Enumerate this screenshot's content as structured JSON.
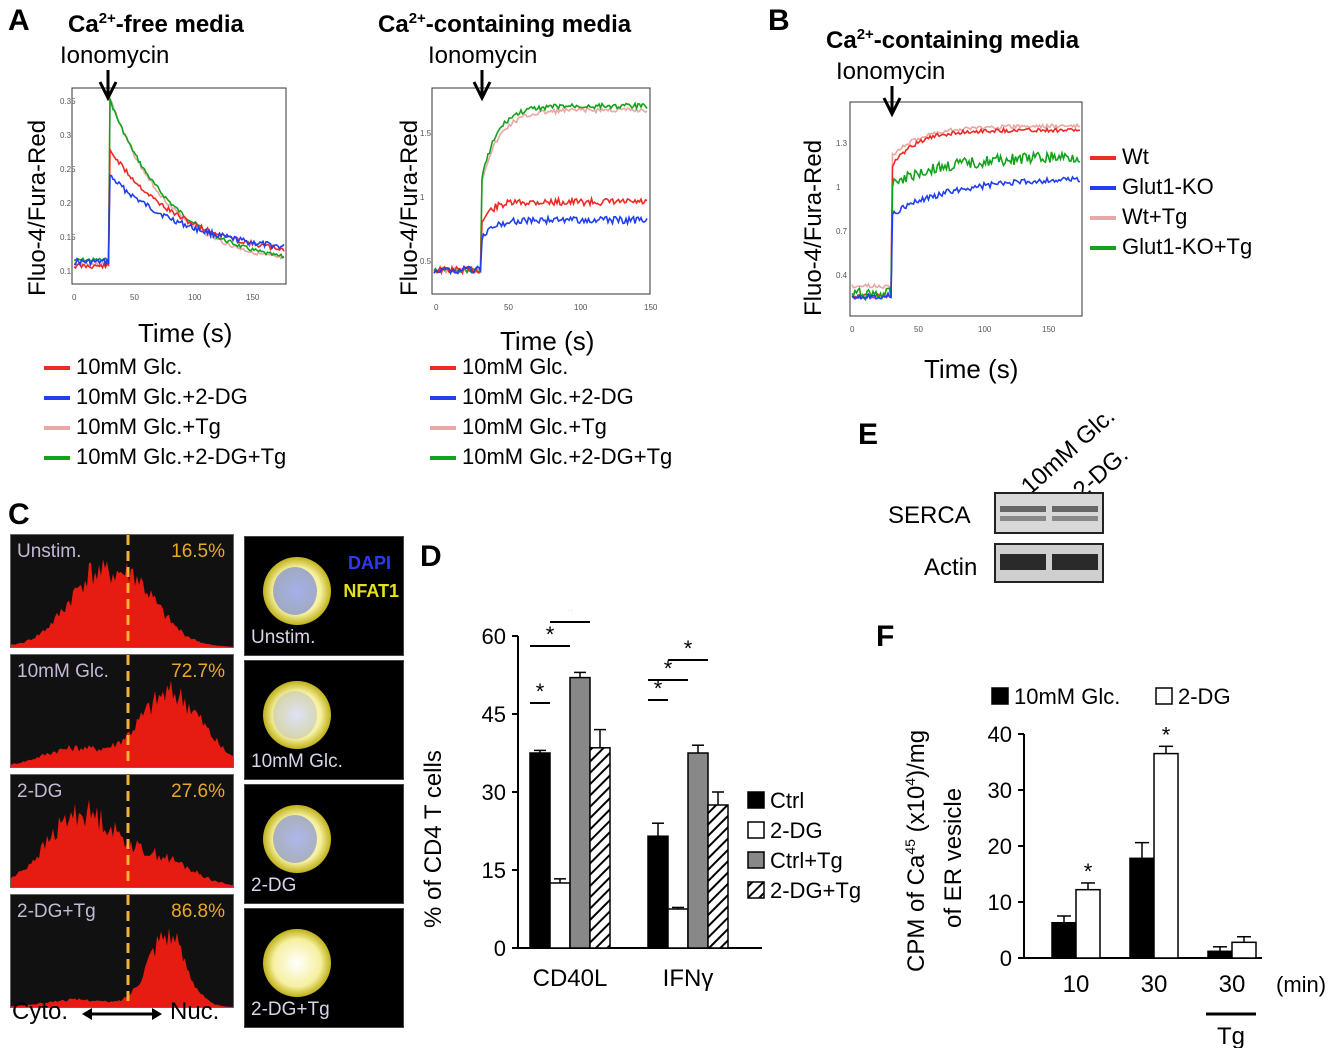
{
  "panels": {
    "A": "A",
    "B": "B",
    "C": "C",
    "D": "D",
    "E": "E",
    "F": "F"
  },
  "panelA": {
    "left_title_pre": "Ca",
    "left_title_sup": "2+",
    "left_title_post": "-free media",
    "right_title_pre": "Ca",
    "right_title_sup": "2+",
    "right_title_post": "-containing media",
    "arrow_label": "Ionomycin",
    "ylabel": "Fluo-4/Fura-Red",
    "xlabel": "Time (s)",
    "left_yticks": [
      "0.35",
      "0.3",
      "0.25",
      "0.2",
      "0.15",
      "0.1"
    ],
    "right_yticks": [
      "1.5",
      "1",
      "0.5"
    ],
    "xticks": [
      "0",
      "50",
      "100",
      "150"
    ],
    "legend": [
      "10mM Glc.",
      "10mM Glc.+2-DG",
      "10mM Glc.+Tg",
      "10mM Glc.+2-DG+Tg"
    ]
  },
  "panelB": {
    "title_pre": "Ca",
    "title_sup": "2+",
    "title_post": "-containing media",
    "arrow_label": "Ionomycin",
    "ylabel": "Fluo-4/Fura-Red",
    "xlabel": "Time (s)",
    "yticks": [
      "1.3",
      "1",
      "0.7",
      "0.4"
    ],
    "xticks": [
      "0",
      "50",
      "100",
      "150"
    ],
    "legend": [
      "Wt",
      "Glut1-KO",
      "Wt+Tg",
      "Glut1-KO+Tg"
    ]
  },
  "panelC": {
    "hists": [
      {
        "label": "Unstim.",
        "pct": "16.5%"
      },
      {
        "label": "10mM Glc.",
        "pct": "72.7%"
      },
      {
        "label": "2-DG",
        "pct": "27.6%"
      },
      {
        "label": "2-DG+Tg",
        "pct": "86.8%"
      }
    ],
    "axis_left": "Cyto.",
    "axis_right": "Nuc.",
    "stain_dapi": "DAPI",
    "stain_nfat": "NFAT1",
    "cells": [
      "Unstim.",
      "10mM Glc.",
      "2-DG",
      "2-DG+Tg"
    ]
  },
  "panelE": {
    "lanes": [
      "10mM Glc.",
      "2-DG."
    ],
    "rows": [
      "SERCA",
      "Actin"
    ]
  },
  "colors": {
    "red": "#ee2a24",
    "blue": "#1f3ff0",
    "pink": "#eaa7a5",
    "green": "#13a21b"
  },
  "chart_data": [
    {
      "type": "bar",
      "panel": "D",
      "ylabel": "% of CD4 T cells",
      "ylim": [
        0,
        60
      ],
      "yticks": [
        "0",
        "15",
        "30",
        "45",
        "60"
      ],
      "categories": [
        "CD40L",
        "IFNγ"
      ],
      "series": [
        {
          "name": "Ctrl",
          "values": [
            37.5,
            21.5
          ],
          "errors": [
            0.5,
            2.5
          ]
        },
        {
          "name": "2-DG",
          "values": [
            12.5,
            7.5
          ],
          "errors": [
            0.8,
            0.3
          ]
        },
        {
          "name": "Ctrl+Tg",
          "values": [
            52,
            37.5
          ],
          "errors": [
            1,
            1.5
          ]
        },
        {
          "name": "2-DG+Tg",
          "values": [
            38.5,
            27.5
          ],
          "errors": [
            3.5,
            2.5
          ]
        }
      ],
      "significance": "*"
    },
    {
      "type": "bar",
      "panel": "F",
      "ylabel_line1_pre": "CPM of Ca",
      "ylabel_line1_sup": "45",
      "ylabel_line1_mid": " (x10",
      "ylabel_line1_sup2": "4",
      "ylabel_line1_post": ")/mg",
      "ylabel_line2": "of ER vesicle",
      "ylim": [
        0,
        40
      ],
      "yticks": [
        "0",
        "10",
        "20",
        "30",
        "40"
      ],
      "categories": [
        "10",
        "30",
        "30"
      ],
      "unit": "(min)",
      "tg_label": "Tg",
      "series": [
        {
          "name": "10mM Glc.",
          "values": [
            6.3,
            17.8,
            1.2
          ],
          "errors": [
            1.2,
            2.8,
            0.8
          ]
        },
        {
          "name": "2-DG",
          "values": [
            12.2,
            36.5,
            2.8
          ],
          "errors": [
            1.2,
            1.3,
            1.0
          ]
        }
      ],
      "significance": "*"
    }
  ]
}
